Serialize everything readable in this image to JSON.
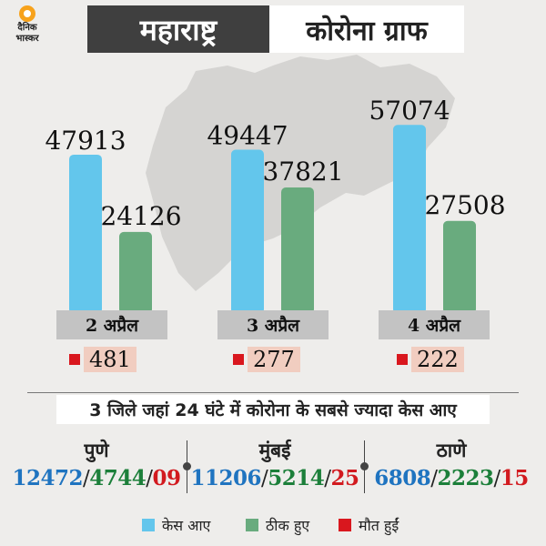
{
  "logo": {
    "line1": "दैनिक",
    "line2": "भास्कर"
  },
  "header": {
    "state": "महाराष्ट्र",
    "title": "कोरोना ग्राफ"
  },
  "colors": {
    "cases": "#63c6ec",
    "recovered": "#69ab7e",
    "deaths": "#d9171e",
    "header_dark": "#3f3f3f"
  },
  "chart_data": {
    "type": "bar",
    "categories": [
      "2 अप्रैल",
      "3 अप्रैल",
      "4 अप्रैल"
    ],
    "series": [
      {
        "name": "केस आए",
        "values": [
          47913,
          49447,
          57074
        ]
      },
      {
        "name": "ठीक हुए",
        "values": [
          24126,
          37821,
          27508
        ]
      },
      {
        "name": "मौत हुईं",
        "values": [
          481,
          277,
          222
        ]
      }
    ],
    "data_labels": {
      "cases": [
        "47913",
        "49447",
        "57074"
      ],
      "recovered": [
        "24126",
        "37821",
        "27508"
      ],
      "deaths": [
        "481",
        "277",
        "222"
      ]
    },
    "legend_placement": "bottom"
  },
  "districts": {
    "title": "3 जिले जहां 24 घंटे में कोरोना के सबसे ज्यादा केस आए",
    "items": [
      {
        "name": "पुणे",
        "cases": "12472",
        "recovered": "4744",
        "deaths": "09"
      },
      {
        "name": "मुंबई",
        "cases": "11206",
        "recovered": "5214",
        "deaths": "25"
      },
      {
        "name": "ठाणे",
        "cases": "6808",
        "recovered": "2223",
        "deaths": "15"
      }
    ],
    "separator": "/"
  },
  "legend": {
    "cases": "केस आए",
    "recovered": "ठीक हुए",
    "deaths": "मौत हुईं"
  }
}
